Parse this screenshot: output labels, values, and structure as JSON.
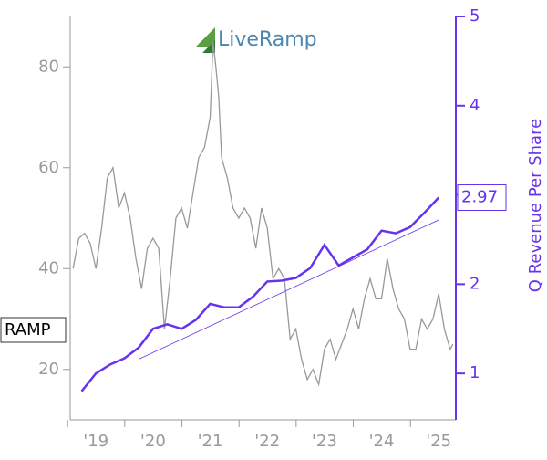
{
  "chart_data": {
    "type": "line",
    "logo": "LiveRamp",
    "y2label": "Q Revenue Per Share",
    "xlim": [
      2018.55,
      2025.3
    ],
    "xticks": [
      {
        "value": 2019,
        "label": "'19"
      },
      {
        "value": 2020,
        "label": "'20"
      },
      {
        "value": 2021,
        "label": "'21"
      },
      {
        "value": 2022,
        "label": "'22"
      },
      {
        "value": 2023,
        "label": "'23"
      },
      {
        "value": 2024,
        "label": "'24"
      },
      {
        "value": 2025,
        "label": "'25"
      }
    ],
    "ylim": [
      10,
      90
    ],
    "yticks": [
      20,
      40,
      60,
      80
    ],
    "y2lim": [
      0.48,
      5
    ],
    "y2ticks": [
      1,
      2,
      3,
      4,
      5
    ],
    "series": [
      {
        "name": "RAMP",
        "color": "#999999",
        "x": [
          2018.6,
          2018.7,
          2018.8,
          2018.9,
          2019.0,
          2019.1,
          2019.2,
          2019.3,
          2019.4,
          2019.5,
          2019.6,
          2019.7,
          2019.8,
          2019.9,
          2020.0,
          2020.1,
          2020.2,
          2020.3,
          2020.4,
          2020.5,
          2020.6,
          2020.7,
          2020.8,
          2020.9,
          2021.0,
          2021.05,
          2021.1,
          2021.15,
          2021.2,
          2021.3,
          2021.4,
          2021.5,
          2021.6,
          2021.7,
          2021.8,
          2021.9,
          2022.0,
          2022.1,
          2022.2,
          2022.3,
          2022.4,
          2022.5,
          2022.6,
          2022.7,
          2022.8,
          2022.9,
          2023.0,
          2023.1,
          2023.2,
          2023.3,
          2023.4,
          2023.5,
          2023.6,
          2023.7,
          2023.8,
          2023.9,
          2024.0,
          2024.1,
          2024.2,
          2024.3,
          2024.4,
          2024.5,
          2024.6,
          2024.7,
          2024.8,
          2024.9,
          2025.0,
          2025.1,
          2025.2,
          2025.25
        ],
        "values": [
          40,
          46,
          47,
          45,
          40,
          48,
          58,
          60,
          52,
          55,
          50,
          42,
          36,
          44,
          46,
          44,
          28,
          38,
          50,
          52,
          48,
          55,
          62,
          64,
          70,
          85,
          80,
          74,
          62,
          58,
          52,
          50,
          52,
          50,
          44,
          52,
          48,
          38,
          40,
          38,
          26,
          28,
          22,
          18,
          20,
          17,
          24,
          26,
          22,
          25,
          28,
          32,
          28,
          34,
          38,
          34,
          34,
          42,
          36,
          32,
          30,
          24,
          24,
          30,
          28,
          30,
          35,
          28,
          24,
          25
        ]
      },
      {
        "color": "#6633ee",
        "axis": "y2",
        "x": [
          2018.75,
          2019.0,
          2019.25,
          2019.5,
          2019.75,
          2020.0,
          2020.25,
          2020.5,
          2020.75,
          2021.0,
          2021.25,
          2021.5,
          2021.75,
          2022.0,
          2022.25,
          2022.5,
          2022.75,
          2023.0,
          2023.25,
          2023.5,
          2023.75,
          2024.0,
          2024.25,
          2024.5,
          2024.75,
          2025.0
        ],
        "values": [
          0.8,
          1.0,
          1.1,
          1.17,
          1.29,
          1.5,
          1.55,
          1.5,
          1.6,
          1.78,
          1.74,
          1.74,
          1.86,
          2.03,
          2.04,
          2.07,
          2.18,
          2.44,
          2.21,
          2.3,
          2.39,
          2.6,
          2.57,
          2.64,
          2.8,
          2.97
        ]
      }
    ],
    "trend": {
      "color": "#6633ee",
      "x": [
        2019.75,
        2025.0
      ],
      "values": [
        1.16,
        2.72
      ]
    }
  }
}
